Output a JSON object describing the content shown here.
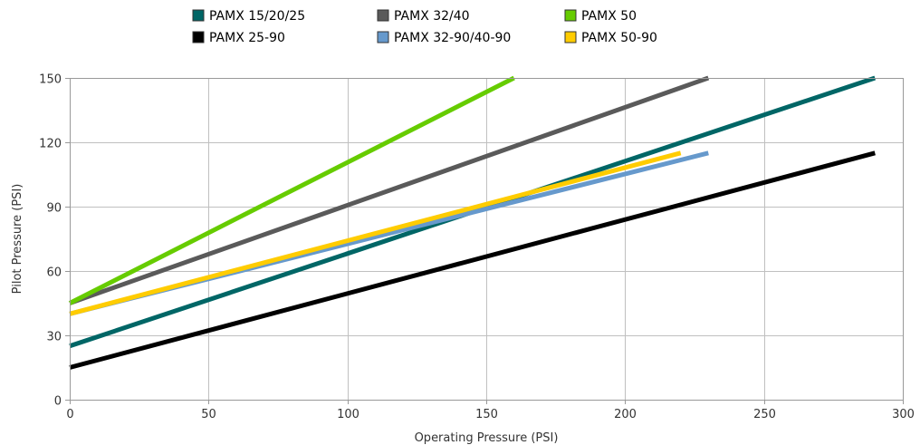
{
  "chart_data": {
    "type": "line",
    "title": "",
    "xlabel": "Operating Pressure (PSI)",
    "ylabel": "Pilot Pressure (PSI)",
    "xlim": [
      0,
      300
    ],
    "ylim": [
      0,
      150
    ],
    "xticks": [
      0,
      50,
      100,
      150,
      200,
      250,
      300
    ],
    "yticks": [
      0,
      30,
      60,
      90,
      120,
      150
    ],
    "grid": true,
    "legend_position": "top",
    "series": [
      {
        "name": "PAMX 15/20/25",
        "color": "#006666",
        "x": [
          0,
          290
        ],
        "y": [
          25,
          150
        ]
      },
      {
        "name": "PAMX 25-90",
        "color": "#000000",
        "x": [
          0,
          290
        ],
        "y": [
          15,
          115
        ]
      },
      {
        "name": "PAMX 32/40",
        "color": "#5a5a5a",
        "x": [
          0,
          230
        ],
        "y": [
          45,
          150
        ]
      },
      {
        "name": "PAMX 32-90/40-90",
        "color": "#6699cc",
        "x": [
          0,
          230
        ],
        "y": [
          40,
          115
        ]
      },
      {
        "name": "PAMX 50",
        "color": "#66cc00",
        "x": [
          0,
          160
        ],
        "y": [
          45,
          150
        ]
      },
      {
        "name": "PAMX 50-90",
        "color": "#ffcc00",
        "x": [
          0,
          220
        ],
        "y": [
          40,
          115
        ]
      }
    ]
  }
}
